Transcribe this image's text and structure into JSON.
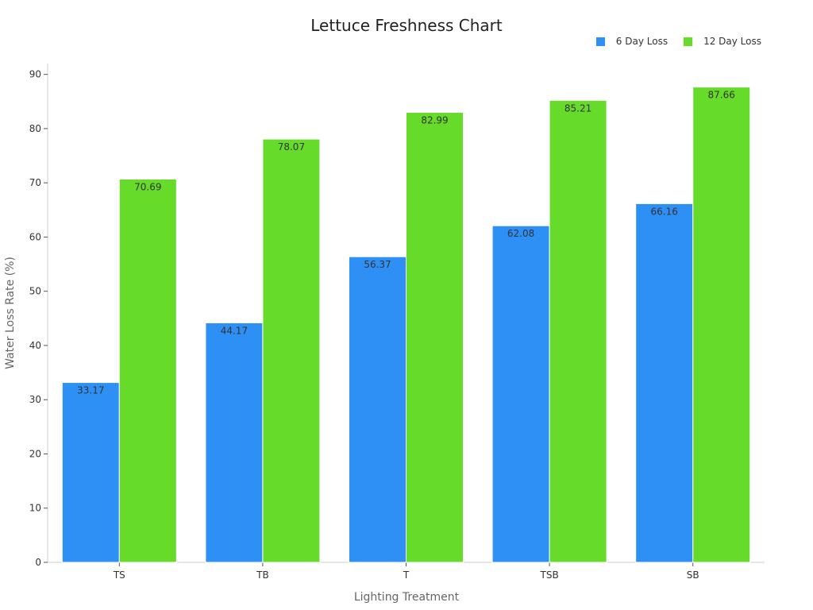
{
  "chart_data": {
    "type": "bar",
    "title": "Lettuce Freshness Chart",
    "xlabel": "Lighting Treatment",
    "ylabel": "Water Loss Rate (%)",
    "categories": [
      "TS",
      "TB",
      "T",
      "TSB",
      "SB"
    ],
    "series": [
      {
        "name": "6 Day Loss",
        "color": "#2E90F5",
        "values": [
          33.17,
          44.17,
          56.37,
          62.08,
          66.16
        ]
      },
      {
        "name": "12 Day Loss",
        "color": "#66DB2A",
        "values": [
          70.69,
          78.07,
          82.99,
          85.21,
          87.66
        ]
      }
    ],
    "ylim": [
      0,
      92
    ],
    "yticks": [
      0,
      10,
      20,
      30,
      40,
      50,
      60,
      70,
      80,
      90
    ],
    "grid": false,
    "legend": "top-right",
    "data_labels": true
  }
}
